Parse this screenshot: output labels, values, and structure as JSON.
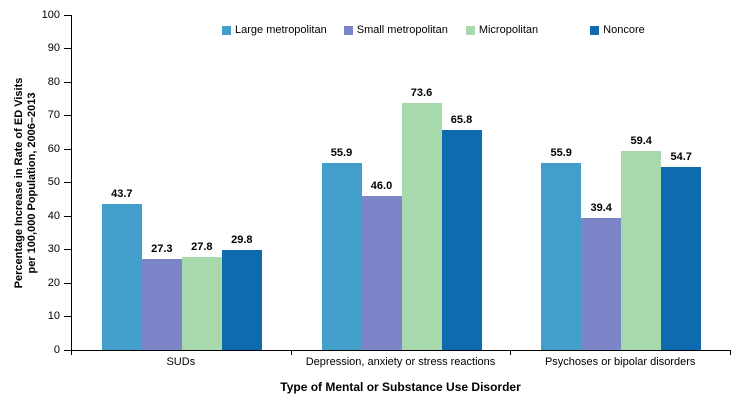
{
  "chart_data": {
    "type": "bar",
    "categories": [
      "SUDs",
      "Depression, anxiety or stress reactions",
      "Psychoses or bipolar disorders"
    ],
    "series": [
      {
        "name": "Large metropolitan",
        "color": "#429fca",
        "values": [
          "43.7",
          "55.9",
          "55.9"
        ]
      },
      {
        "name": "Small metropolitan",
        "color": "#7b85c8",
        "values": [
          "27.3",
          "46.0",
          "39.4"
        ]
      },
      {
        "name": "Micropolitan",
        "color": "#a8d9ad",
        "values": [
          "27.8",
          "73.6",
          "59.4"
        ]
      },
      {
        "name": "Noncore",
        "color": "#0e6bb0",
        "values": [
          "29.8",
          "65.8",
          "54.7"
        ]
      }
    ],
    "title": "",
    "ylabel": "Percentage Increase in Rate of ED Visits\nper 100,000 Population, 2006–2013",
    "xlabel": "Type of Mental or Substance Use Disorder",
    "ylim": [
      0,
      100
    ],
    "ytick_step": 10,
    "legend_position": "top",
    "grid": false,
    "axis_color": "#000000",
    "text_color": "#000000",
    "background_color": "#ffffff"
  }
}
